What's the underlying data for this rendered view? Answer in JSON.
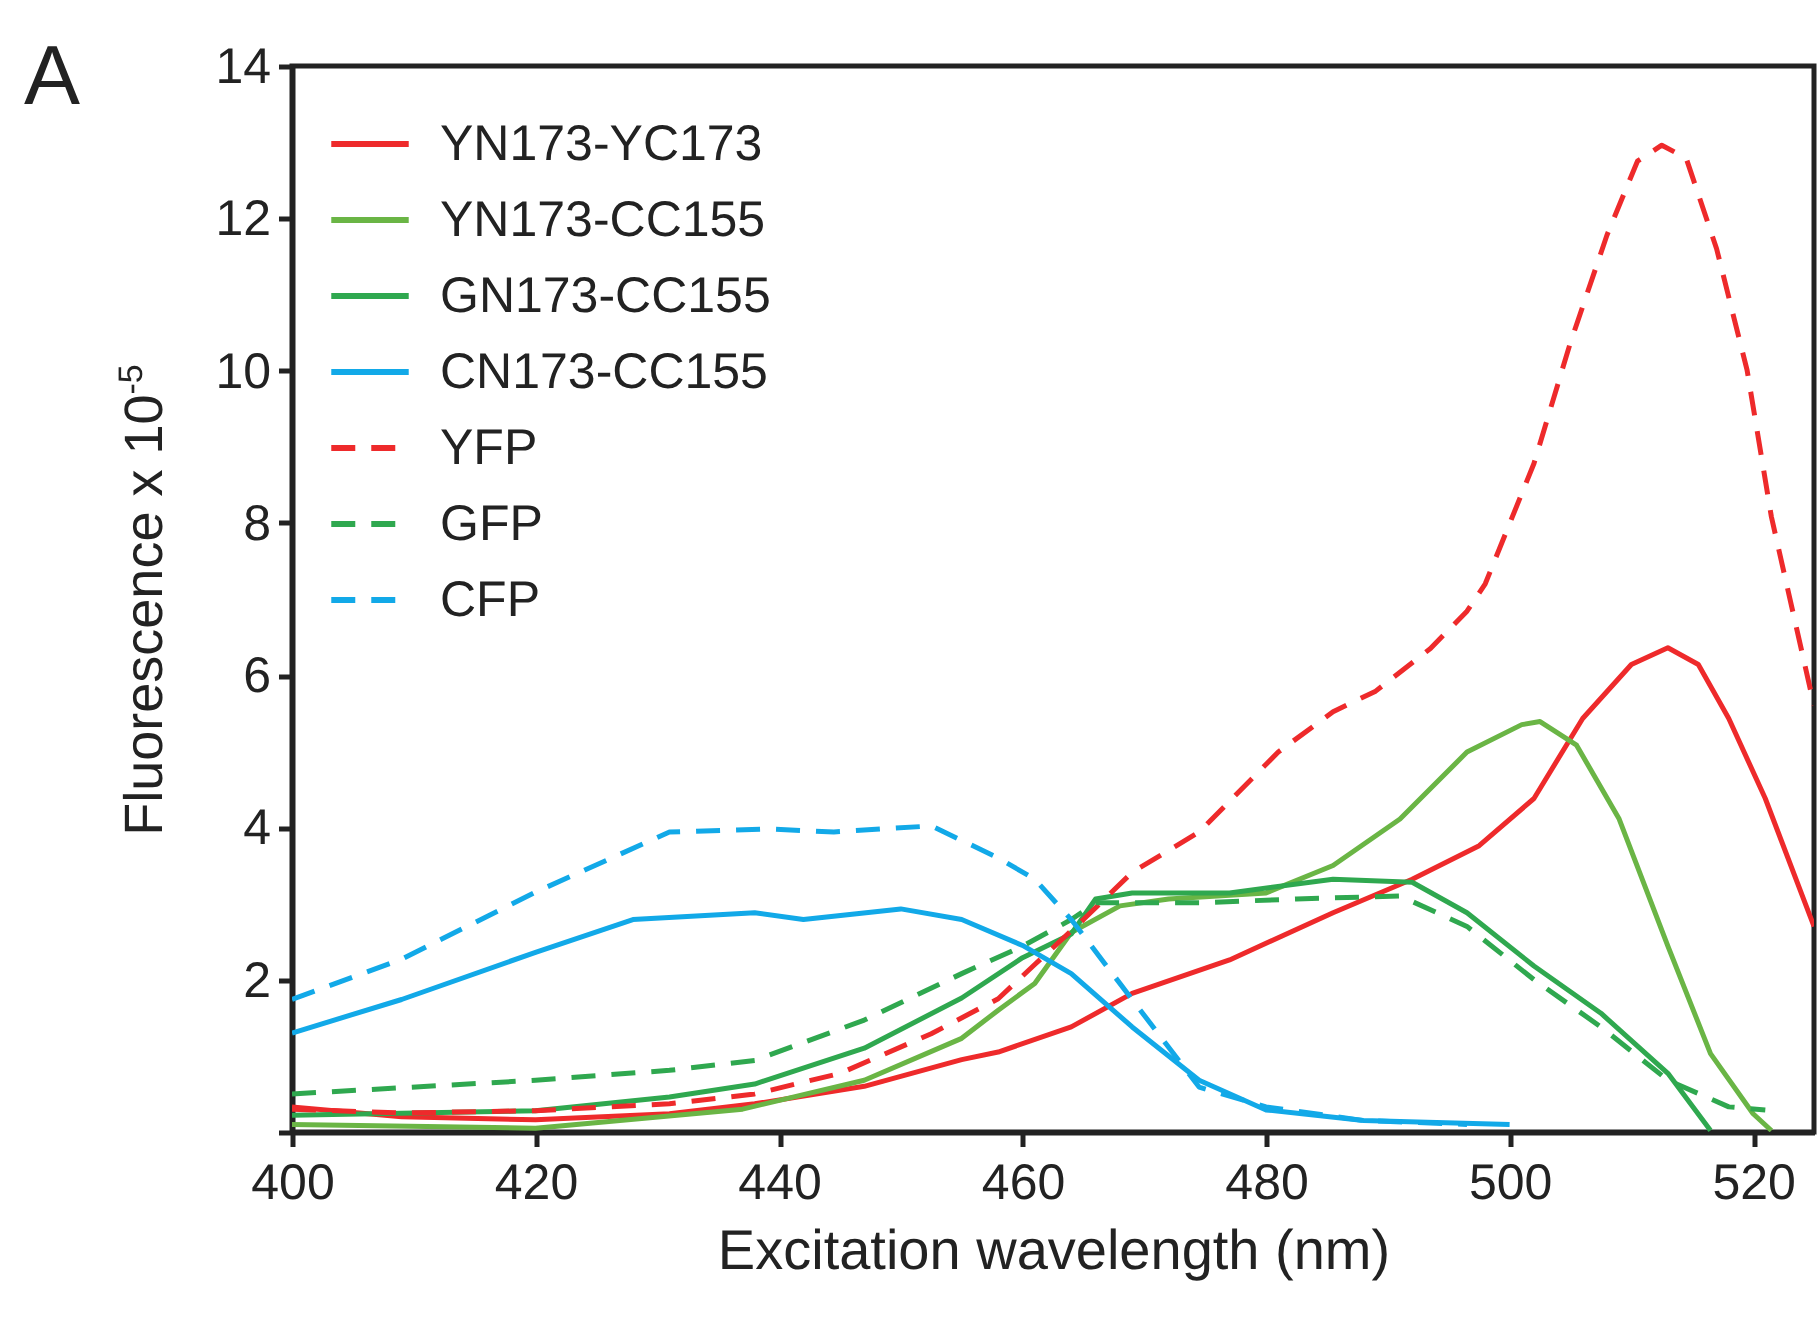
{
  "chart_data": {
    "type": "line",
    "xlabel": "Excitation wavelength (nm)",
    "ylabel": "Fluorescence  x 10$^{-5}$",
    "annotations": [
      "A"
    ],
    "xlim": [
      400,
      525
    ],
    "ylim": [
      0,
      14
    ],
    "xticks": [
      400,
      420,
      440,
      460,
      480,
      500,
      520
    ],
    "yticks": [
      {
        "value": 0,
        "label": null
      },
      2,
      4,
      6,
      8,
      10,
      12,
      14
    ],
    "grid": false,
    "legend": "top left",
    "marker": "none",
    "series": [
      {
        "name": "YN173-YC173",
        "color": "#ee2a2b",
        "line_style": "solid",
        "x": [
          400,
          409,
          420,
          431,
          438,
          447,
          455,
          458,
          464,
          469,
          477,
          485.5,
          492,
          497.5,
          502,
          506,
          510,
          513,
          515.5,
          518,
          521,
          525
        ],
        "values": [
          0.33,
          0.2,
          0.16,
          0.24,
          0.37,
          0.6,
          0.95,
          1.05,
          1.38,
          1.82,
          2.26,
          2.88,
          3.32,
          3.76,
          4.38,
          5.43,
          6.14,
          6.36,
          6.14,
          5.43,
          4.38,
          2.7
        ]
      },
      {
        "name": "YN173-CC155",
        "color": "#6ab545",
        "line_style": "solid",
        "x": [
          400,
          420,
          437,
          447,
          455,
          458,
          461,
          464,
          468,
          472,
          480,
          485.5,
          491,
          496.5,
          501,
          502.5,
          505.5,
          509,
          513,
          516.5,
          520,
          521.5
        ],
        "values": [
          0.1,
          0.05,
          0.3,
          0.68,
          1.23,
          1.6,
          1.95,
          2.62,
          2.97,
          3.06,
          3.14,
          3.5,
          4.11,
          4.99,
          5.35,
          5.39,
          5.08,
          4.11,
          2.44,
          1.03,
          0.24,
          0.02
        ]
      },
      {
        "name": "GN173-CC155",
        "color": "#2fa84f",
        "line_style": "solid",
        "x": [
          400,
          420,
          431,
          438,
          447,
          455,
          460,
          464,
          466,
          469,
          477,
          485.5,
          492,
          496.5,
          502,
          507.5,
          513,
          516.5
        ],
        "values": [
          0.22,
          0.28,
          0.46,
          0.63,
          1.1,
          1.76,
          2.29,
          2.6,
          3.06,
          3.14,
          3.14,
          3.32,
          3.28,
          2.88,
          2.18,
          1.56,
          0.77,
          0.02
        ]
      },
      {
        "name": "CN173-CC155",
        "color": "#12a9e8",
        "line_style": "solid",
        "x": [
          400,
          409,
          420,
          428,
          438,
          442,
          450,
          455,
          460,
          464,
          469,
          474.5,
          480,
          488,
          500
        ],
        "values": [
          1.3,
          1.74,
          2.36,
          2.79,
          2.88,
          2.79,
          2.93,
          2.79,
          2.45,
          2.08,
          1.38,
          0.68,
          0.29,
          0.15,
          0.1
        ]
      },
      {
        "name": "YFP",
        "color": "#ee2a2b",
        "line_style": "dashed",
        "x": [
          400,
          409,
          420,
          431,
          438,
          445,
          452.5,
          458,
          461,
          465,
          469,
          474.5,
          481,
          485.5,
          489,
          493.5,
          496.5,
          498,
          502,
          505,
          508,
          510.5,
          512.5,
          514.5,
          517,
          519.5,
          521.5,
          524,
          525
        ],
        "values": [
          0.3,
          0.25,
          0.28,
          0.37,
          0.5,
          0.77,
          1.29,
          1.75,
          2.2,
          2.79,
          3.41,
          3.94,
          4.99,
          5.52,
          5.79,
          6.35,
          6.84,
          7.2,
          8.78,
          10.37,
          11.78,
          12.75,
          12.96,
          12.79,
          11.6,
          10.01,
          8.08,
          6.31,
          5.6
        ]
      },
      {
        "name": "GFP",
        "color": "#2fa84f",
        "line_style": "dashed",
        "x": [
          400,
          420,
          431,
          438,
          447,
          455,
          460,
          464,
          466,
          474.5,
          482.5,
          491,
          496.5,
          502,
          507.5,
          513,
          518,
          521
        ],
        "values": [
          0.5,
          0.68,
          0.81,
          0.94,
          1.47,
          2.08,
          2.44,
          2.79,
          3.01,
          3.01,
          3.06,
          3.1,
          2.7,
          2.0,
          1.38,
          0.68,
          0.33,
          0.29
        ]
      },
      {
        "name": "CFP",
        "color": "#12a9e8",
        "line_style": "dashed",
        "x": [
          400,
          409,
          420,
          431,
          439,
          444.5,
          452.5,
          458,
          461,
          464,
          469,
          474.5,
          480,
          488,
          496.5
        ],
        "values": [
          1.74,
          2.27,
          3.15,
          3.94,
          3.98,
          3.94,
          4.02,
          3.6,
          3.32,
          2.79,
          1.74,
          0.59,
          0.33,
          0.15,
          0.1
        ]
      }
    ]
  }
}
